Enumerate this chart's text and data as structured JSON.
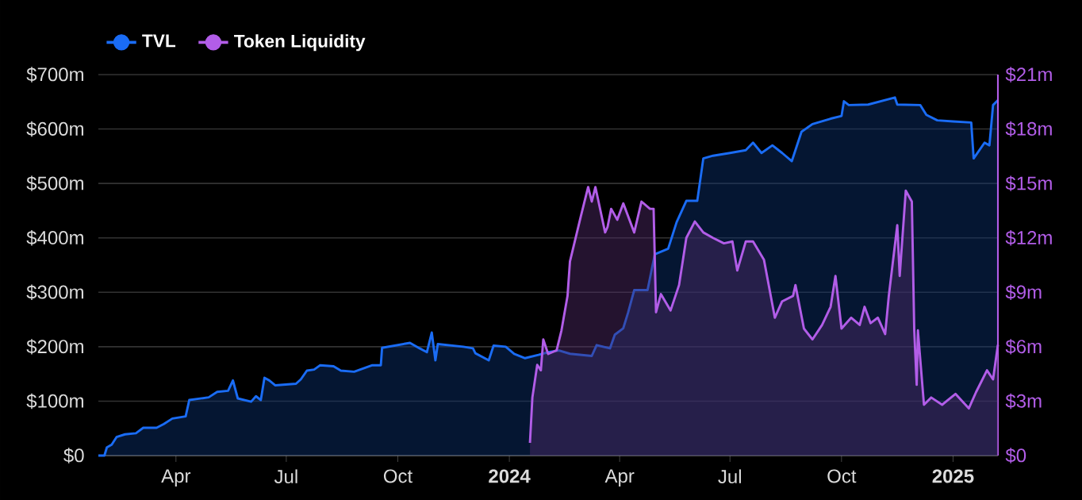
{
  "chart_data": {
    "type": "area",
    "legend": "top left",
    "grid": "y",
    "marker": "none",
    "xlim": [
      "2023-01-27",
      "2025-02-07"
    ],
    "xticks": [
      {
        "value": "2023-04-01",
        "label": "Apr"
      },
      {
        "value": "2023-07-01",
        "label": "Jul"
      },
      {
        "value": "2023-10-01",
        "label": "Oct"
      },
      {
        "value": "2024-01-01",
        "label": "2024"
      },
      {
        "value": "2024-04-01",
        "label": "Apr"
      },
      {
        "value": "2024-07-01",
        "label": "Jul"
      },
      {
        "value": "2024-10-01",
        "label": "Oct"
      },
      {
        "value": "2025-01-01",
        "label": "2025"
      }
    ],
    "ylim": [
      0,
      700
    ],
    "yticks": [
      {
        "value": 0,
        "label": "$0"
      },
      {
        "value": 100,
        "label": "$100m"
      },
      {
        "value": 200,
        "label": "$200m"
      },
      {
        "value": 300,
        "label": "$300m"
      },
      {
        "value": 400,
        "label": "$400m"
      },
      {
        "value": 500,
        "label": "$500m"
      },
      {
        "value": 600,
        "label": "$600m"
      },
      {
        "value": 700,
        "label": "$700m"
      }
    ],
    "y2lim": [
      0,
      21
    ],
    "y2ticks": [
      {
        "value": 0,
        "label": "$0"
      },
      {
        "value": 3,
        "label": "$3m"
      },
      {
        "value": 6,
        "label": "$6m"
      },
      {
        "value": 9,
        "label": "$9m"
      },
      {
        "value": 12,
        "label": "$12m"
      },
      {
        "value": 15,
        "label": "$15m"
      },
      {
        "value": 18,
        "label": "$18m"
      },
      {
        "value": 21,
        "label": "$21m"
      }
    ],
    "series": [
      {
        "name": "TVL",
        "color": "#1a6cf5",
        "x": [
          "2023-01-27",
          "2023-02-01",
          "2023-02-03",
          "2023-02-07",
          "2023-02-11",
          "2023-02-18",
          "2023-02-27",
          "2023-03-05",
          "2023-03-16",
          "2023-03-22",
          "2023-03-29",
          "2023-04-09",
          "2023-04-12",
          "2023-04-28",
          "2023-05-05",
          "2023-05-14",
          "2023-05-18",
          "2023-05-22",
          "2023-06-02",
          "2023-06-06",
          "2023-06-10",
          "2023-06-13",
          "2023-06-17",
          "2023-06-22",
          "2023-07-09",
          "2023-07-13",
          "2023-07-18",
          "2023-07-24",
          "2023-07-29",
          "2023-08-09",
          "2023-08-15",
          "2023-08-26",
          "2023-09-10",
          "2023-09-17",
          "2023-09-18",
          "2023-10-11",
          "2023-10-19",
          "2023-10-25",
          "2023-10-29",
          "2023-11-01",
          "2023-11-03",
          "2023-11-24",
          "2023-12-02",
          "2023-12-04",
          "2023-12-15",
          "2023-12-19",
          "2023-12-29",
          "2024-01-05",
          "2024-01-14",
          "2024-01-25",
          "2024-02-02",
          "2024-02-11",
          "2024-02-20",
          "2024-03-09",
          "2024-03-13",
          "2024-03-24",
          "2024-03-28",
          "2024-04-04",
          "2024-04-08",
          "2024-04-13",
          "2024-04-24",
          "2024-04-30",
          "2024-05-11",
          "2024-05-18",
          "2024-05-26",
          "2024-06-04",
          "2024-06-09",
          "2024-06-17",
          "2024-07-01",
          "2024-07-14",
          "2024-07-20",
          "2024-07-27",
          "2024-08-05",
          "2024-08-13",
          "2024-08-21",
          "2024-08-29",
          "2024-09-07",
          "2024-09-22",
          "2024-10-01",
          "2024-10-03",
          "2024-10-07",
          "2024-10-23",
          "2024-11-14",
          "2024-11-16",
          "2024-12-05",
          "2024-12-10",
          "2024-12-19",
          "2025-01-01",
          "2025-01-16",
          "2025-01-18",
          "2025-01-27",
          "2025-01-31",
          "2025-02-03",
          "2025-02-07"
        ],
        "values": [
          0,
          0,
          15,
          20,
          34,
          39,
          41,
          51,
          51,
          58,
          68,
          72,
          102,
          107,
          117,
          119,
          138,
          105,
          99,
          109,
          102,
          143,
          138,
          129,
          132,
          140,
          156,
          158,
          166,
          164,
          156,
          154,
          166,
          166,
          198,
          207,
          197,
          190,
          226,
          175,
          205,
          200,
          197,
          188,
          175,
          202,
          200,
          187,
          179,
          185,
          190,
          193,
          187,
          183,
          203,
          197,
          222,
          234,
          263,
          304,
          304,
          370,
          380,
          429,
          468,
          468,
          546,
          551,
          556,
          561,
          575,
          556,
          570,
          556,
          541,
          595,
          609,
          619,
          624,
          651,
          644,
          645,
          658,
          645,
          644,
          626,
          616,
          614,
          612,
          546,
          575,
          570,
          644,
          653
        ]
      },
      {
        "name": "Token Liquidity",
        "color": "#b25de8",
        "axis": "y2",
        "x": [
          "2024-01-18",
          "2024-01-20",
          "2024-01-24",
          "2024-01-27",
          "2024-01-29",
          "2024-02-02",
          "2024-02-09",
          "2024-02-13",
          "2024-02-18",
          "2024-02-20",
          "2024-02-29",
          "2024-03-06",
          "2024-03-09",
          "2024-03-12",
          "2024-03-20",
          "2024-03-22",
          "2024-03-25",
          "2024-03-30",
          "2024-04-04",
          "2024-04-13",
          "2024-04-19",
          "2024-04-26",
          "2024-04-29",
          "2024-05-01",
          "2024-05-05",
          "2024-05-13",
          "2024-05-20",
          "2024-05-26",
          "2024-06-02",
          "2024-06-09",
          "2024-06-17",
          "2024-06-26",
          "2024-07-03",
          "2024-07-07",
          "2024-07-14",
          "2024-07-20",
          "2024-07-29",
          "2024-08-07",
          "2024-08-13",
          "2024-08-22",
          "2024-08-24",
          "2024-08-31",
          "2024-09-07",
          "2024-09-15",
          "2024-09-22",
          "2024-09-26",
          "2024-10-01",
          "2024-10-09",
          "2024-10-16",
          "2024-10-20",
          "2024-10-25",
          "2024-10-31",
          "2024-11-06",
          "2024-11-09",
          "2024-11-16",
          "2024-11-18",
          "2024-11-23",
          "2024-11-28",
          "2024-11-30",
          "2024-12-02",
          "2024-12-03",
          "2024-12-08",
          "2024-12-14",
          "2024-12-23",
          "2025-01-03",
          "2025-01-14",
          "2025-01-20",
          "2025-01-29",
          "2025-02-03",
          "2025-02-07"
        ],
        "values": [
          0.7,
          3.2,
          5.0,
          4.7,
          6.4,
          5.6,
          5.8,
          6.9,
          8.8,
          10.7,
          13.2,
          14.8,
          14.0,
          14.8,
          12.3,
          12.6,
          13.6,
          13.0,
          13.9,
          12.3,
          14.0,
          13.6,
          13.6,
          7.9,
          8.9,
          8.0,
          9.4,
          12.0,
          12.9,
          12.3,
          12.0,
          11.7,
          11.8,
          10.2,
          11.8,
          11.8,
          10.8,
          7.6,
          8.5,
          8.8,
          9.4,
          7.0,
          6.4,
          7.2,
          8.2,
          9.9,
          7.0,
          7.6,
          7.2,
          8.2,
          7.3,
          7.6,
          6.7,
          8.8,
          12.7,
          9.9,
          14.6,
          14.0,
          6.9,
          3.9,
          6.9,
          2.8,
          3.2,
          2.8,
          3.4,
          2.6,
          3.5,
          4.7,
          4.2,
          6.1
        ]
      }
    ]
  }
}
